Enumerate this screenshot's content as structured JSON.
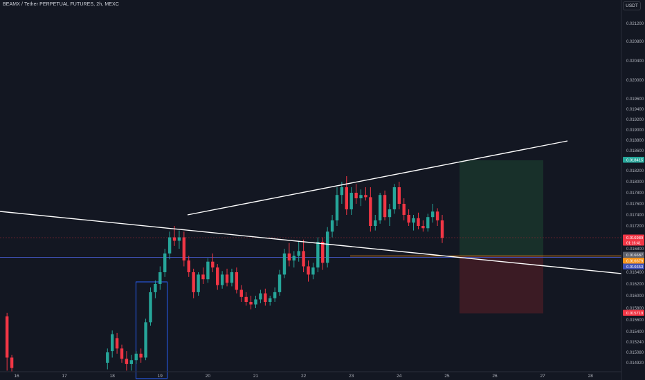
{
  "header": {
    "title": "BEAMX / Tether PERPETUAL FUTURES, 2h, MEXC",
    "currency": "USDT"
  },
  "colors": {
    "background": "#131722",
    "up": "#26a69a",
    "down": "#f23645",
    "target_zone": "#1b3a2e",
    "stop_zone": "#4a1e26",
    "trendline": "#ffffff",
    "blue_line": "#3f51b5",
    "orange_line": "#f7931a",
    "red_line": "#7a2531",
    "rect_outline": "#2962ff"
  },
  "chart_data": {
    "type": "candlestick",
    "x_ticks": [
      "16",
      "17",
      "18",
      "19",
      "20",
      "21",
      "22",
      "23",
      "24",
      "25",
      "26",
      "27",
      "28"
    ],
    "y_ticks": [
      "0.021200",
      "0.020800",
      "0.020400",
      "0.020000",
      "0.019600",
      "0.019400",
      "0.019200",
      "0.019000",
      "0.018800",
      "0.018600",
      "0.018200",
      "0.018000",
      "0.017800",
      "0.017600",
      "0.017400",
      "0.017200",
      "0.016800",
      "0.016400",
      "0.016200",
      "0.016000",
      "0.015800",
      "0.015600",
      "0.015400",
      "0.015240",
      "0.015080",
      "0.014920"
    ],
    "price_labels": [
      {
        "value": "0.018415",
        "color": "#26a69a"
      },
      {
        "value": "0.016989",
        "color": "#f23645",
        "sub": "01:16:41"
      },
      {
        "value": "0.016687",
        "color": "#5d606b"
      },
      {
        "value": "0.016679",
        "color": "#f7931a"
      },
      {
        "value": "0.016653",
        "color": "#3f51b5"
      },
      {
        "value": "0.015719",
        "color": "#f23645"
      }
    ],
    "y_range": [
      0.0148,
      0.0214
    ],
    "candles": [
      {
        "x": 15.8,
        "o": 0.01566,
        "h": 0.01572,
        "l": 0.0148,
        "c": 0.015
      },
      {
        "x": 15.9,
        "o": 0.015,
        "h": 0.01504,
        "l": 0.01478,
        "c": 0.01484
      },
      {
        "x": 17.9,
        "o": 0.01492,
        "h": 0.01514,
        "l": 0.01482,
        "c": 0.01508
      },
      {
        "x": 18.0,
        "o": 0.0151,
        "h": 0.01542,
        "l": 0.015,
        "c": 0.01536
      },
      {
        "x": 18.1,
        "o": 0.0153,
        "h": 0.01538,
        "l": 0.01506,
        "c": 0.01514
      },
      {
        "x": 18.2,
        "o": 0.01514,
        "h": 0.0152,
        "l": 0.01492,
        "c": 0.01498
      },
      {
        "x": 18.3,
        "o": 0.01498,
        "h": 0.0151,
        "l": 0.0148,
        "c": 0.0149
      },
      {
        "x": 18.4,
        "o": 0.0149,
        "h": 0.01504,
        "l": 0.0148,
        "c": 0.01496
      },
      {
        "x": 18.5,
        "o": 0.01496,
        "h": 0.0151,
        "l": 0.0149,
        "c": 0.01506
      },
      {
        "x": 18.6,
        "o": 0.01506,
        "h": 0.01514,
        "l": 0.01492,
        "c": 0.015
      },
      {
        "x": 18.7,
        "o": 0.015,
        "h": 0.01562,
        "l": 0.01496,
        "c": 0.01556
      },
      {
        "x": 18.8,
        "o": 0.01556,
        "h": 0.01614,
        "l": 0.0155,
        "c": 0.01606
      },
      {
        "x": 18.9,
        "o": 0.01606,
        "h": 0.01626,
        "l": 0.01596,
        "c": 0.0162
      },
      {
        "x": 19.0,
        "o": 0.0162,
        "h": 0.0165,
        "l": 0.0161,
        "c": 0.0164
      },
      {
        "x": 19.1,
        "o": 0.0164,
        "h": 0.0168,
        "l": 0.01632,
        "c": 0.01672
      },
      {
        "x": 19.2,
        "o": 0.01672,
        "h": 0.0171,
        "l": 0.01662,
        "c": 0.017
      },
      {
        "x": 19.3,
        "o": 0.017,
        "h": 0.0172,
        "l": 0.01685,
        "c": 0.01694
      },
      {
        "x": 19.4,
        "o": 0.01694,
        "h": 0.01712,
        "l": 0.0168,
        "c": 0.017
      },
      {
        "x": 19.5,
        "o": 0.017,
        "h": 0.0171,
        "l": 0.0165,
        "c": 0.0166
      },
      {
        "x": 19.6,
        "o": 0.0166,
        "h": 0.01668,
        "l": 0.01632,
        "c": 0.0164
      },
      {
        "x": 19.7,
        "o": 0.0164,
        "h": 0.01646,
        "l": 0.01596,
        "c": 0.01606
      },
      {
        "x": 19.8,
        "o": 0.01606,
        "h": 0.0164,
        "l": 0.016,
        "c": 0.01636
      },
      {
        "x": 19.9,
        "o": 0.01636,
        "h": 0.01648,
        "l": 0.0162,
        "c": 0.01628
      },
      {
        "x": 20.0,
        "o": 0.01628,
        "h": 0.01664,
        "l": 0.01622,
        "c": 0.01658
      },
      {
        "x": 20.1,
        "o": 0.01658,
        "h": 0.01672,
        "l": 0.0164,
        "c": 0.01648
      },
      {
        "x": 20.2,
        "o": 0.01648,
        "h": 0.01654,
        "l": 0.0161,
        "c": 0.01618
      },
      {
        "x": 20.3,
        "o": 0.01618,
        "h": 0.01642,
        "l": 0.01612,
        "c": 0.01636
      },
      {
        "x": 20.4,
        "o": 0.01636,
        "h": 0.01646,
        "l": 0.01616,
        "c": 0.01622
      },
      {
        "x": 20.5,
        "o": 0.01622,
        "h": 0.01646,
        "l": 0.01616,
        "c": 0.0164
      },
      {
        "x": 20.6,
        "o": 0.0164,
        "h": 0.01648,
        "l": 0.01604,
        "c": 0.0161
      },
      {
        "x": 20.7,
        "o": 0.0161,
        "h": 0.01618,
        "l": 0.0159,
        "c": 0.01598
      },
      {
        "x": 20.8,
        "o": 0.01598,
        "h": 0.01606,
        "l": 0.01584,
        "c": 0.0159
      },
      {
        "x": 20.9,
        "o": 0.0159,
        "h": 0.016,
        "l": 0.01578,
        "c": 0.01586
      },
      {
        "x": 21.0,
        "o": 0.01586,
        "h": 0.016,
        "l": 0.0158,
        "c": 0.01594
      },
      {
        "x": 21.1,
        "o": 0.01594,
        "h": 0.0161,
        "l": 0.01588,
        "c": 0.01604
      },
      {
        "x": 21.2,
        "o": 0.01604,
        "h": 0.01612,
        "l": 0.01584,
        "c": 0.0159
      },
      {
        "x": 21.3,
        "o": 0.0159,
        "h": 0.016,
        "l": 0.01584,
        "c": 0.01596
      },
      {
        "x": 21.4,
        "o": 0.01596,
        "h": 0.01614,
        "l": 0.0159,
        "c": 0.01606
      },
      {
        "x": 21.5,
        "o": 0.01606,
        "h": 0.01644,
        "l": 0.016,
        "c": 0.01636
      },
      {
        "x": 21.6,
        "o": 0.01636,
        "h": 0.0168,
        "l": 0.0163,
        "c": 0.01672
      },
      {
        "x": 21.7,
        "o": 0.01672,
        "h": 0.0169,
        "l": 0.0165,
        "c": 0.0166
      },
      {
        "x": 21.8,
        "o": 0.0166,
        "h": 0.01676,
        "l": 0.01648,
        "c": 0.01668
      },
      {
        "x": 21.9,
        "o": 0.01668,
        "h": 0.01694,
        "l": 0.01658,
        "c": 0.01676
      },
      {
        "x": 22.0,
        "o": 0.01676,
        "h": 0.01696,
        "l": 0.0164,
        "c": 0.0165
      },
      {
        "x": 22.1,
        "o": 0.0165,
        "h": 0.0166,
        "l": 0.01624,
        "c": 0.01636
      },
      {
        "x": 22.2,
        "o": 0.01636,
        "h": 0.01656,
        "l": 0.01628,
        "c": 0.01648
      },
      {
        "x": 22.3,
        "o": 0.01648,
        "h": 0.017,
        "l": 0.0164,
        "c": 0.01692
      },
      {
        "x": 22.4,
        "o": 0.01692,
        "h": 0.017,
        "l": 0.01644,
        "c": 0.01656
      },
      {
        "x": 22.5,
        "o": 0.01656,
        "h": 0.01718,
        "l": 0.01648,
        "c": 0.0171
      },
      {
        "x": 22.6,
        "o": 0.0171,
        "h": 0.0174,
        "l": 0.017,
        "c": 0.0173
      },
      {
        "x": 22.7,
        "o": 0.0173,
        "h": 0.0179,
        "l": 0.0172,
        "c": 0.01776
      },
      {
        "x": 22.8,
        "o": 0.01776,
        "h": 0.018,
        "l": 0.0176,
        "c": 0.0179
      },
      {
        "x": 22.9,
        "o": 0.0179,
        "h": 0.0181,
        "l": 0.0174,
        "c": 0.0175
      },
      {
        "x": 23.0,
        "o": 0.0175,
        "h": 0.0179,
        "l": 0.0174,
        "c": 0.0178
      },
      {
        "x": 23.1,
        "o": 0.0178,
        "h": 0.01796,
        "l": 0.0176,
        "c": 0.0177
      },
      {
        "x": 23.2,
        "o": 0.0177,
        "h": 0.01786,
        "l": 0.01756,
        "c": 0.01776
      },
      {
        "x": 23.3,
        "o": 0.01776,
        "h": 0.0179,
        "l": 0.01766,
        "c": 0.01772
      },
      {
        "x": 23.4,
        "o": 0.01772,
        "h": 0.0179,
        "l": 0.0171,
        "c": 0.0172
      },
      {
        "x": 23.5,
        "o": 0.0172,
        "h": 0.0174,
        "l": 0.01712,
        "c": 0.0173
      },
      {
        "x": 23.6,
        "o": 0.0173,
        "h": 0.0178,
        "l": 0.01724,
        "c": 0.01776
      },
      {
        "x": 23.7,
        "o": 0.01776,
        "h": 0.01784,
        "l": 0.0173,
        "c": 0.01736
      },
      {
        "x": 23.8,
        "o": 0.01736,
        "h": 0.0176,
        "l": 0.0172,
        "c": 0.0175
      },
      {
        "x": 23.9,
        "o": 0.0175,
        "h": 0.01796,
        "l": 0.01742,
        "c": 0.0179
      },
      {
        "x": 24.0,
        "o": 0.0179,
        "h": 0.018,
        "l": 0.0175,
        "c": 0.0176
      },
      {
        "x": 24.1,
        "o": 0.0176,
        "h": 0.0177,
        "l": 0.0173,
        "c": 0.0174
      },
      {
        "x": 24.2,
        "o": 0.0174,
        "h": 0.0175,
        "l": 0.0172,
        "c": 0.01726
      },
      {
        "x": 24.3,
        "o": 0.01726,
        "h": 0.0174,
        "l": 0.01712,
        "c": 0.01734
      },
      {
        "x": 24.4,
        "o": 0.01734,
        "h": 0.01744,
        "l": 0.01714,
        "c": 0.0172
      },
      {
        "x": 24.5,
        "o": 0.0172,
        "h": 0.0173,
        "l": 0.0171,
        "c": 0.01716
      },
      {
        "x": 24.6,
        "o": 0.01716,
        "h": 0.01742,
        "l": 0.0171,
        "c": 0.01736
      },
      {
        "x": 24.7,
        "o": 0.01736,
        "h": 0.0176,
        "l": 0.01726,
        "c": 0.01746
      },
      {
        "x": 24.8,
        "o": 0.01746,
        "h": 0.01752,
        "l": 0.0172,
        "c": 0.0173
      },
      {
        "x": 24.9,
        "o": 0.0173,
        "h": 0.0174,
        "l": 0.0169,
        "c": 0.01699
      }
    ]
  }
}
